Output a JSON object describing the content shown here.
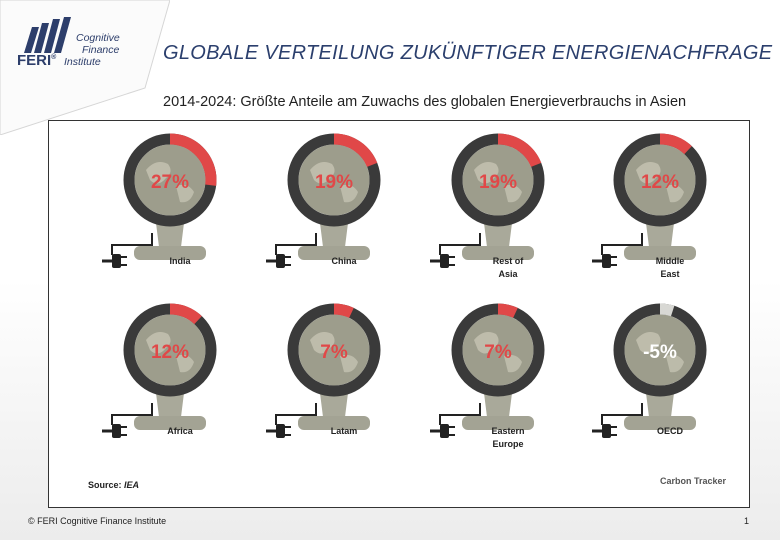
{
  "header": {
    "logo_brand": "FERI",
    "logo_line1": "Cognitive",
    "logo_line2": "Finance",
    "logo_line3": "Institute",
    "title": "GLOBALE VERTEILUNG ZUKÜNFTIGER ENERGIENACHFRAGE",
    "subtitle": "2014-2024: Größte Anteile am Zuwachs des globalen Energieverbrauchs in Asien"
  },
  "chart_data": {
    "type": "pie",
    "title": "",
    "unit": "%",
    "items": [
      {
        "label": [
          "India"
        ],
        "value": 27,
        "display": "27%"
      },
      {
        "label": [
          "China"
        ],
        "value": 19,
        "display": "19%"
      },
      {
        "label": [
          "Rest of",
          "Asia"
        ],
        "value": 19,
        "display": "19%"
      },
      {
        "label": [
          "Middle",
          "East"
        ],
        "value": 12,
        "display": "12%"
      },
      {
        "label": [
          "Africa"
        ],
        "value": 12,
        "display": "12%"
      },
      {
        "label": [
          "Latam"
        ],
        "value": 7,
        "display": "7%"
      },
      {
        "label": [
          "Eastern",
          "Europe"
        ],
        "value": 7,
        "display": "7%"
      },
      {
        "label": [
          "OECD"
        ],
        "value": -5,
        "display": "-5%"
      }
    ],
    "colors": {
      "positive": "#e04848",
      "negative": "#d8d8d4",
      "ring": "#3a3a3a",
      "globe": "#9d9d8c",
      "land": "#c9c7b6"
    }
  },
  "source": {
    "prefix": "Source: ",
    "name": "IEA"
  },
  "carbon_logo": "Carbon Tracker",
  "footer": {
    "copyright": "© FERI Cognitive Finance Institute",
    "page": "1"
  }
}
